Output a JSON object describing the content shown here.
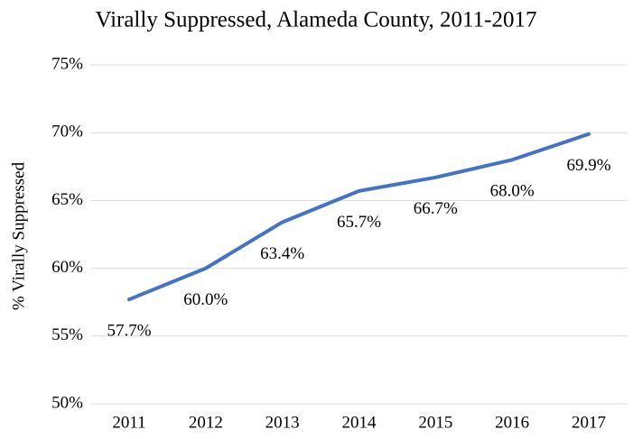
{
  "chart_data": {
    "type": "line",
    "title": "Virally  Suppressed, Alameda County, 2011-2017",
    "y_label": "% Virally  Suppressed",
    "categories": [
      "2011",
      "2012",
      "2013",
      "2014",
      "2015",
      "2016",
      "2017"
    ],
    "series": [
      {
        "name": "% Virally Suppressed",
        "color": "#4472c4",
        "values": [
          57.7,
          60.0,
          63.4,
          65.7,
          66.7,
          68.0,
          69.9
        ],
        "value_labels": [
          "57.7%",
          "60.0%",
          "63.4%",
          "65.7%",
          "66.7%",
          "68.0%",
          "69.9%"
        ]
      }
    ],
    "ylim": [
      50,
      75
    ],
    "yticks": [
      {
        "value": 50,
        "label": "50%"
      },
      {
        "value": 55,
        "label": "55%"
      },
      {
        "value": 60,
        "label": "60%"
      },
      {
        "value": 65,
        "label": "65%"
      },
      {
        "value": 70,
        "label": "70%"
      },
      {
        "value": 75,
        "label": "75%"
      }
    ],
    "grid": true
  }
}
